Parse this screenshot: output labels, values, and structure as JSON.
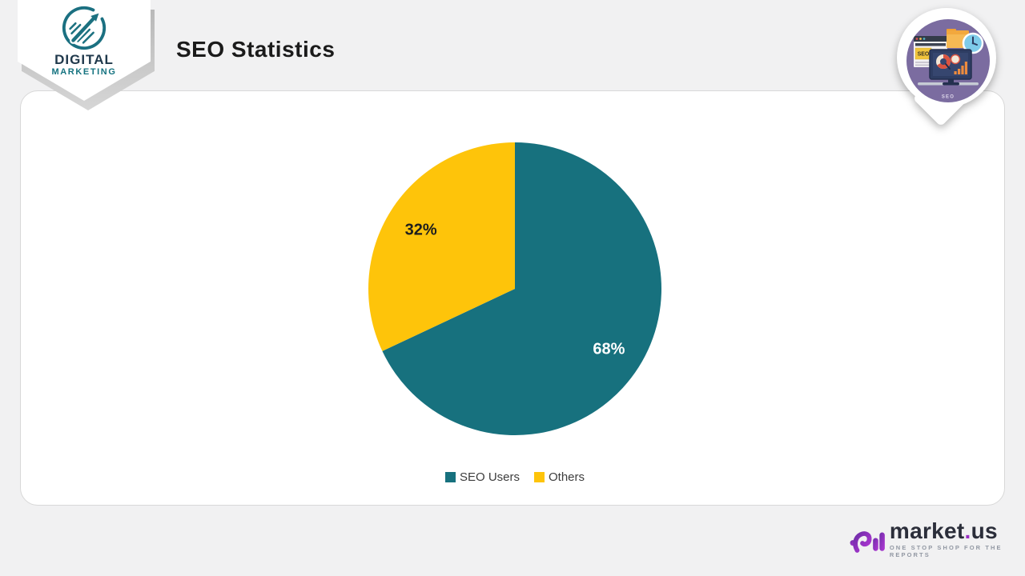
{
  "page": {
    "background": "#f1f1f2"
  },
  "header": {
    "title": "SEO Statistics",
    "brand": {
      "name_line1": "DIGITAL",
      "name_line2": "MARKETING"
    },
    "pin": {
      "caption": "SEO",
      "browser_label": "SEO"
    }
  },
  "chart_data": {
    "type": "pie",
    "title": "SEO Statistics",
    "labels": [
      "SEO Users",
      "Others"
    ],
    "values": [
      68,
      32
    ],
    "colors": [
      "#17717e",
      "#fec40a"
    ],
    "slice_label_colors": [
      "#ffffff",
      "#1e1e1e"
    ],
    "slice_labels": [
      "68%",
      "32%"
    ],
    "value_suffix": "%",
    "start_angle_deg": 0,
    "direction": "clockwise",
    "legend_position": "bottom"
  },
  "footer": {
    "name_parts": {
      "pre": "market",
      "dot": ".",
      "post": "us"
    },
    "tagline": "ONE STOP SHOP FOR THE REPORTS"
  }
}
